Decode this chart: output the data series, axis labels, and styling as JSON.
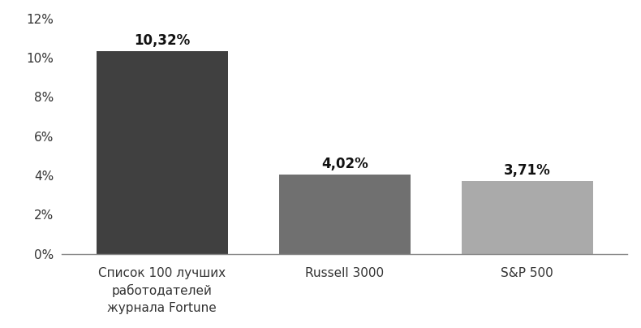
{
  "categories": [
    "Список 100 лучших\nработодателей\nжурнала Fortune",
    "Russell 3000",
    "S&P 500"
  ],
  "values": [
    10.32,
    4.02,
    3.71
  ],
  "labels": [
    "10,32%",
    "4,02%",
    "3,71%"
  ],
  "bar_colors": [
    "#404040",
    "#707070",
    "#aaaaaa"
  ],
  "ylim": [
    0,
    12
  ],
  "yticks": [
    0,
    2,
    4,
    6,
    8,
    10,
    12
  ],
  "ytick_labels": [
    "0%",
    "2%",
    "4%",
    "6%",
    "8%",
    "10%",
    "12%"
  ],
  "background_color": "#ffffff",
  "label_fontsize": 12,
  "tick_fontsize": 11,
  "bar_width": 0.72,
  "xlim": [
    -0.55,
    2.55
  ]
}
